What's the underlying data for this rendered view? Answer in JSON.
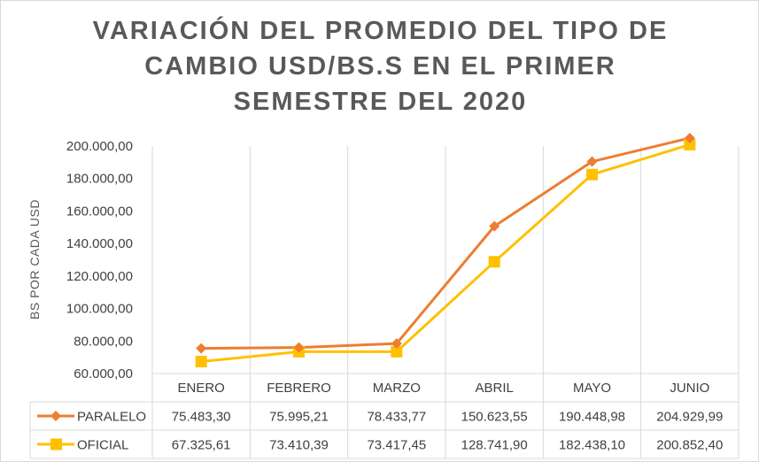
{
  "chart_data": {
    "type": "line",
    "title": "VARIACIÓN DEL PROMEDIO DEL TIPO DE CAMBIO USD/BS.S EN EL PRIMER SEMESTRE DEL 2020",
    "title_lines": [
      "VARIACIÓN DEL PROMEDIO DEL TIPO DE",
      "CAMBIO USD/BS.S EN EL PRIMER",
      "SEMESTRE DEL 2020"
    ],
    "ylabel": "BS POR CADA USD",
    "xlabel": "",
    "categories": [
      "ENERO",
      "FEBRERO",
      "MARZO",
      "ABRIL",
      "MAYO",
      "JUNIO"
    ],
    "ylim": [
      60000,
      200000
    ],
    "yticks": [
      60000,
      80000,
      100000,
      120000,
      140000,
      160000,
      180000,
      200000
    ],
    "ytick_labels": [
      "60.000,00",
      "80.000,00",
      "100.000,00",
      "120.000,00",
      "140.000,00",
      "160.000,00",
      "180.000,00",
      "200.000,00"
    ],
    "grid": "vertical",
    "legend": "data-table",
    "series": [
      {
        "name": "PARALELO",
        "color": "#ED7D31",
        "marker": "diamond",
        "values": [
          75483.3,
          75995.21,
          78433.77,
          150623.55,
          190448.98,
          204929.99
        ],
        "value_labels": [
          "75.483,30",
          "75.995,21",
          "78.433,77",
          "150.623,55",
          "190.448,98",
          "204.929,99"
        ]
      },
      {
        "name": "OFICIAL",
        "color": "#FFC000",
        "marker": "square",
        "values": [
          67325.61,
          73410.39,
          73417.45,
          128741.9,
          182438.1,
          200852.4
        ],
        "value_labels": [
          "67.325,61",
          "73.410,39",
          "73.417,45",
          "128.741,90",
          "182.438,10",
          "200.852,40"
        ]
      }
    ]
  }
}
